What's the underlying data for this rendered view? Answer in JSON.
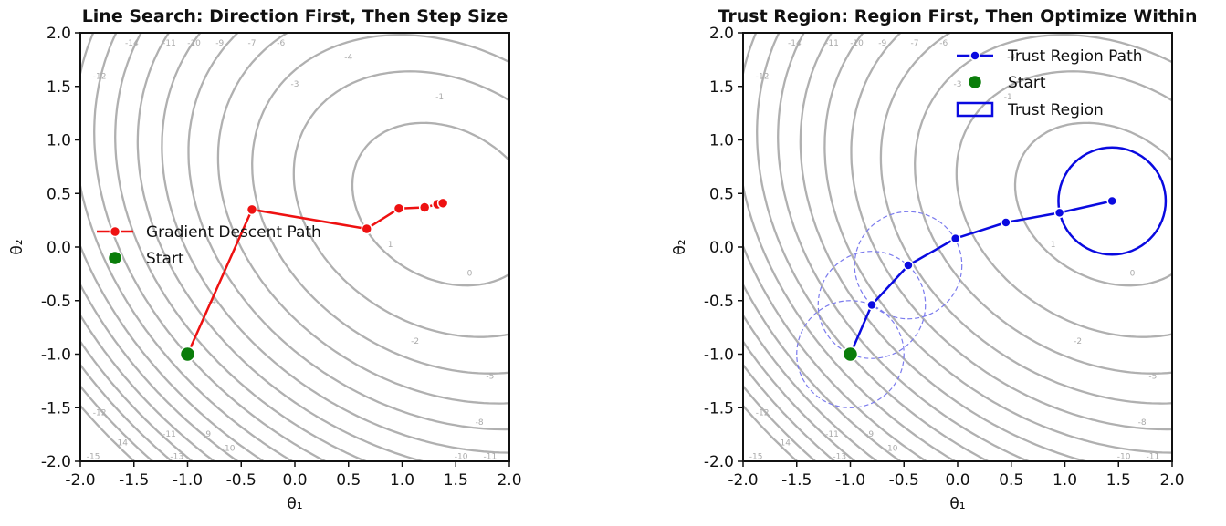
{
  "colors": {
    "contour": "#b0b0b0",
    "contour_label": "#aaaaaa",
    "gradient_path": "#ee1111",
    "trust_path": "#0a0ae0",
    "trust_region_dashed": "#7b7bee",
    "start": "#0a7d0a"
  },
  "chart_data": [
    {
      "type": "line",
      "title": "Line Search: Direction First, Then Step Size",
      "xlabel": "θ₁",
      "ylabel": "θ₂",
      "xlim": [
        -2.0,
        2.0
      ],
      "ylim": [
        -2.0,
        2.0
      ],
      "x_ticks": [
        "-2.0",
        "-1.5",
        "-1.0",
        "-0.5",
        "0.0",
        "0.5",
        "1.0",
        "1.5",
        "2.0"
      ],
      "y_ticks": [
        "-2.0",
        "-1.5",
        "-1.0",
        "-0.5",
        "0.0",
        "0.5",
        "1.0",
        "1.5",
        "2.0"
      ],
      "grid": false,
      "legend_position": "center-left",
      "contour_levels": [
        -15,
        -14,
        -13,
        -12,
        -11,
        -10,
        -9,
        -8,
        -7,
        -6,
        -5,
        -4,
        -3,
        -2,
        -1,
        0,
        1
      ],
      "contour_labels": [
        {
          "text": "-14",
          "x": -1.52,
          "y": 1.88
        },
        {
          "text": "-12",
          "x": -1.82,
          "y": 1.57
        },
        {
          "text": "-11",
          "x": -1.17,
          "y": 1.88
        },
        {
          "text": "-10",
          "x": -0.94,
          "y": 1.88
        },
        {
          "text": "-9",
          "x": -0.7,
          "y": 1.88
        },
        {
          "text": "-7",
          "x": -0.4,
          "y": 1.88
        },
        {
          "text": "-6",
          "x": -0.13,
          "y": 1.88
        },
        {
          "text": "-4",
          "x": 0.5,
          "y": 1.75
        },
        {
          "text": "-3",
          "x": 0.0,
          "y": 1.5
        },
        {
          "text": "-1",
          "x": 1.35,
          "y": 1.38
        },
        {
          "text": "1",
          "x": 0.89,
          "y": 0.0
        },
        {
          "text": "0",
          "x": 1.63,
          "y": -0.27
        },
        {
          "text": "-4",
          "x": -0.77,
          "y": -0.53
        },
        {
          "text": "-2",
          "x": 1.12,
          "y": -0.9
        },
        {
          "text": "-5",
          "x": 1.82,
          "y": -1.23
        },
        {
          "text": "-8",
          "x": 1.72,
          "y": -1.66
        },
        {
          "text": "-12",
          "x": -1.82,
          "y": -1.57
        },
        {
          "text": "-11",
          "x": -1.17,
          "y": -1.77
        },
        {
          "text": "-9",
          "x": -0.82,
          "y": -1.77
        },
        {
          "text": "-10",
          "x": -0.62,
          "y": -1.9
        },
        {
          "text": "-14",
          "x": -1.62,
          "y": -1.85
        },
        {
          "text": "-13",
          "x": -1.1,
          "y": -1.98
        },
        {
          "text": "-15",
          "x": -1.88,
          "y": -1.98
        },
        {
          "text": "-10",
          "x": 1.55,
          "y": -1.98
        },
        {
          "text": "-11",
          "x": 1.82,
          "y": -1.98
        }
      ],
      "series": [
        {
          "name": "Gradient Descent Path",
          "x": [
            -1.0,
            -0.4,
            0.67,
            0.97,
            1.21,
            1.33,
            1.38
          ],
          "y": [
            -1.0,
            0.35,
            0.17,
            0.36,
            0.37,
            0.4,
            0.41
          ]
        }
      ],
      "start": {
        "name": "Start",
        "x": -1.0,
        "y": -1.0
      },
      "legend": [
        "Gradient Descent Path",
        "Start"
      ]
    },
    {
      "type": "line",
      "title": "Trust Region: Region First, Then Optimize Within",
      "xlabel": "θ₁",
      "ylabel": "θ₂",
      "xlim": [
        -2.0,
        2.0
      ],
      "ylim": [
        -2.0,
        2.0
      ],
      "x_ticks": [
        "-2.0",
        "-1.5",
        "-1.0",
        "-0.5",
        "0.0",
        "0.5",
        "1.0",
        "1.5",
        "2.0"
      ],
      "y_ticks": [
        "-2.0",
        "-1.5",
        "-1.0",
        "-0.5",
        "0.0",
        "0.5",
        "1.0",
        "1.5",
        "2.0"
      ],
      "grid": false,
      "legend_position": "top-right",
      "contour_levels": [
        -15,
        -14,
        -13,
        -12,
        -11,
        -10,
        -9,
        -8,
        -7,
        -6,
        -5,
        -4,
        -3,
        -2,
        -1,
        0,
        1
      ],
      "contour_labels": [
        {
          "text": "-14",
          "x": -1.52,
          "y": 1.88
        },
        {
          "text": "-12",
          "x": -1.82,
          "y": 1.57
        },
        {
          "text": "-11",
          "x": -1.17,
          "y": 1.88
        },
        {
          "text": "-10",
          "x": -0.94,
          "y": 1.88
        },
        {
          "text": "-9",
          "x": -0.7,
          "y": 1.88
        },
        {
          "text": "-7",
          "x": -0.4,
          "y": 1.88
        },
        {
          "text": "-6",
          "x": -0.13,
          "y": 1.88
        },
        {
          "text": "-4",
          "x": 0.5,
          "y": 1.75
        },
        {
          "text": "-3",
          "x": 0.0,
          "y": 1.5
        },
        {
          "text": "-1",
          "x": 0.47,
          "y": 1.38
        },
        {
          "text": "1",
          "x": 0.89,
          "y": 0.0
        },
        {
          "text": "0",
          "x": 1.63,
          "y": -0.27
        },
        {
          "text": "-2",
          "x": 1.12,
          "y": -0.9
        },
        {
          "text": "-5",
          "x": 1.82,
          "y": -1.23
        },
        {
          "text": "-8",
          "x": 1.72,
          "y": -1.66
        },
        {
          "text": "-12",
          "x": -1.82,
          "y": -1.57
        },
        {
          "text": "-11",
          "x": -1.17,
          "y": -1.77
        },
        {
          "text": "-9",
          "x": -0.82,
          "y": -1.77
        },
        {
          "text": "-10",
          "x": -0.62,
          "y": -1.9
        },
        {
          "text": "-14",
          "x": -1.62,
          "y": -1.85
        },
        {
          "text": "-13",
          "x": -1.1,
          "y": -1.98
        },
        {
          "text": "-15",
          "x": -1.88,
          "y": -1.98
        },
        {
          "text": "-10",
          "x": 1.55,
          "y": -1.98
        },
        {
          "text": "-11",
          "x": 1.82,
          "y": -1.98
        }
      ],
      "series": [
        {
          "name": "Trust Region Path",
          "x": [
            -1.0,
            -0.8,
            -0.46,
            -0.02,
            0.45,
            0.95,
            1.44
          ],
          "y": [
            -1.0,
            -0.54,
            -0.17,
            0.08,
            0.23,
            0.32,
            0.43
          ]
        }
      ],
      "start": {
        "name": "Start",
        "x": -1.0,
        "y": -1.0
      },
      "trust_regions_dashed": [
        {
          "cx": -1.0,
          "cy": -1.0,
          "r": 0.5
        },
        {
          "cx": -0.8,
          "cy": -0.54,
          "r": 0.5
        },
        {
          "cx": -0.46,
          "cy": -0.17,
          "r": 0.5
        }
      ],
      "trust_region_final": {
        "name": "Trust Region",
        "cx": 1.44,
        "cy": 0.43,
        "r": 0.5
      },
      "legend": [
        "Trust Region Path",
        "Start",
        "Trust Region"
      ]
    }
  ]
}
